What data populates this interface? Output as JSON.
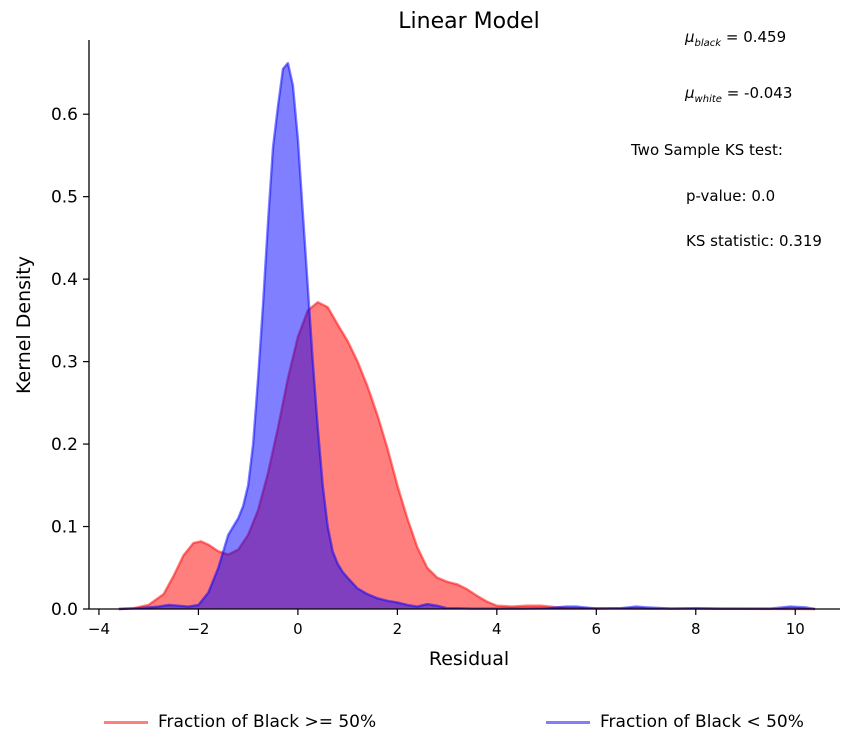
{
  "chart_data": {
    "type": "area",
    "title": "Linear Model",
    "xlabel": "Residual",
    "ylabel": "Kernel Density",
    "xlim": [
      -4.2,
      10.9
    ],
    "ylim": [
      0,
      0.69
    ],
    "xticks": [
      -4,
      -2,
      0,
      2,
      4,
      6,
      8,
      10
    ],
    "xtick_labels": [
      "−4",
      "−2",
      "0",
      "2",
      "4",
      "6",
      "8",
      "10"
    ],
    "yticks": [
      0.0,
      0.1,
      0.2,
      0.3,
      0.4,
      0.5,
      0.6
    ],
    "ytick_labels": [
      "0.0",
      "0.1",
      "0.2",
      "0.3",
      "0.4",
      "0.5",
      "0.6"
    ],
    "grid": false,
    "legend_position": "bottom",
    "series": [
      {
        "name": "Fraction of Black >= 50%",
        "color": "#ff0000",
        "x": [
          -3.6,
          -3.3,
          -3.0,
          -2.7,
          -2.5,
          -2.3,
          -2.1,
          -1.95,
          -1.8,
          -1.6,
          -1.4,
          -1.2,
          -1.0,
          -0.8,
          -0.6,
          -0.4,
          -0.2,
          0.0,
          0.2,
          0.4,
          0.6,
          0.8,
          1.0,
          1.2,
          1.4,
          1.6,
          1.8,
          2.0,
          2.2,
          2.4,
          2.6,
          2.8,
          3.0,
          3.2,
          3.4,
          3.6,
          3.8,
          4.0,
          4.3,
          4.6,
          4.9,
          5.2,
          5.5,
          6.0,
          6.6,
          7.2,
          7.8,
          8.4,
          9.0,
          9.6,
          10.4
        ],
        "y": [
          0.0,
          0.001,
          0.005,
          0.018,
          0.04,
          0.065,
          0.08,
          0.082,
          0.078,
          0.07,
          0.066,
          0.072,
          0.09,
          0.12,
          0.165,
          0.22,
          0.28,
          0.33,
          0.362,
          0.372,
          0.366,
          0.345,
          0.325,
          0.3,
          0.27,
          0.235,
          0.195,
          0.15,
          0.11,
          0.075,
          0.05,
          0.038,
          0.033,
          0.03,
          0.024,
          0.016,
          0.009,
          0.004,
          0.003,
          0.004,
          0.004,
          0.002,
          0.001,
          0.001,
          0.0008,
          0.0005,
          0.0005,
          0.0003,
          0.0002,
          0.0001,
          0.0
        ],
        "fill": true
      },
      {
        "name": "Fraction of Black < 50%",
        "color": "#0000ff",
        "x": [
          -3.6,
          -3.2,
          -2.8,
          -2.6,
          -2.4,
          -2.2,
          -2.0,
          -1.8,
          -1.6,
          -1.5,
          -1.4,
          -1.3,
          -1.2,
          -1.1,
          -1.0,
          -0.9,
          -0.8,
          -0.7,
          -0.6,
          -0.5,
          -0.4,
          -0.3,
          -0.2,
          -0.1,
          0.0,
          0.1,
          0.2,
          0.3,
          0.4,
          0.5,
          0.6,
          0.7,
          0.8,
          0.9,
          1.0,
          1.2,
          1.4,
          1.6,
          1.8,
          2.0,
          2.2,
          2.4,
          2.6,
          2.8,
          3.0,
          3.2,
          3.5,
          4.0,
          4.5,
          5.0,
          5.4,
          5.6,
          6.0,
          6.5,
          6.8,
          7.0,
          7.5,
          8.0,
          8.5,
          9.0,
          9.5,
          9.9,
          10.2,
          10.4
        ],
        "y": [
          0.0,
          0.001,
          0.003,
          0.005,
          0.004,
          0.003,
          0.005,
          0.02,
          0.05,
          0.07,
          0.09,
          0.1,
          0.11,
          0.125,
          0.15,
          0.2,
          0.28,
          0.37,
          0.47,
          0.56,
          0.61,
          0.655,
          0.662,
          0.635,
          0.57,
          0.48,
          0.39,
          0.3,
          0.22,
          0.15,
          0.1,
          0.07,
          0.055,
          0.045,
          0.038,
          0.025,
          0.018,
          0.013,
          0.01,
          0.008,
          0.005,
          0.003,
          0.006,
          0.004,
          0.001,
          0.001,
          0.0005,
          0.0005,
          0.0005,
          0.001,
          0.003,
          0.003,
          0.0005,
          0.001,
          0.003,
          0.002,
          0.0005,
          0.001,
          0.0005,
          0.0005,
          0.0005,
          0.003,
          0.002,
          0.0
        ],
        "fill": true
      }
    ],
    "annotations": [
      {
        "symbol": "μ",
        "subscript": "black",
        "text": " = 0.459"
      },
      {
        "symbol": "μ",
        "subscript": "white",
        "text": " = -0.043"
      },
      {
        "text": "Two Sample KS test:"
      },
      {
        "text": "p-value: 0.0"
      },
      {
        "text": "KS statistic: 0.319"
      }
    ]
  }
}
